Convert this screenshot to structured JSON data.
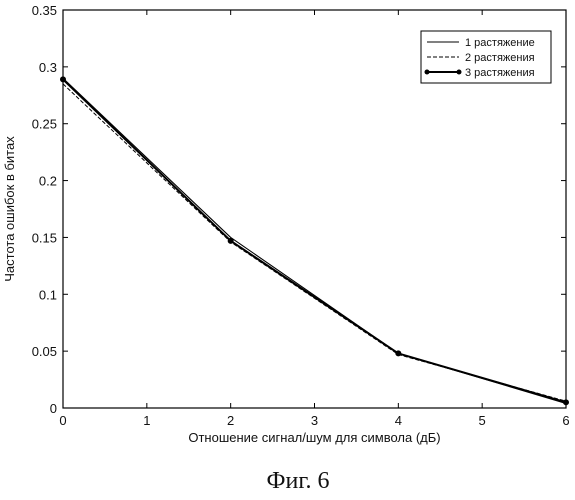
{
  "chart_data": {
    "type": "line",
    "xlabel": "Отношение сигнал/шум для символа (дБ)",
    "ylabel": "Частота ошибок в битах",
    "xlim": [
      0,
      6
    ],
    "ylim": [
      0,
      0.35
    ],
    "x_ticks": [
      "0",
      "1",
      "2",
      "3",
      "4",
      "5",
      "6"
    ],
    "y_ticks": [
      "0",
      "0.05",
      "0.1",
      "0.15",
      "0.2",
      "0.25",
      "0.3",
      "0.35"
    ],
    "x": [
      0,
      2,
      4,
      6
    ],
    "series": [
      {
        "name": "1 растяжение",
        "values": [
          0.29,
          0.15,
          0.048,
          0.004
        ],
        "style": "solid"
      },
      {
        "name": "2 растяжения",
        "values": [
          0.285,
          0.146,
          0.047,
          0.006
        ],
        "style": "dashed"
      },
      {
        "name": "3 растяжения",
        "values": [
          0.289,
          0.147,
          0.048,
          0.005
        ],
        "style": "solid-markers"
      }
    ],
    "legend_position": "top-right",
    "grid": false,
    "line_color": "#000000"
  },
  "caption": "Фиг. 6"
}
